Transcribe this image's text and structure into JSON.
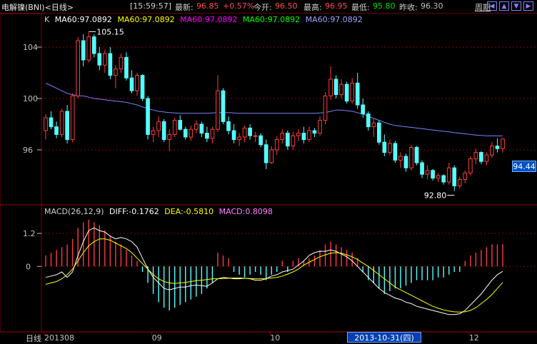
{
  "header": {
    "title": "电解镍(BNI)<日线>",
    "time": "[15:59:57]",
    "latest_label": "最新:",
    "latest_value": "96.85",
    "change_pct": "+0.57%",
    "open_label": "今开:",
    "open_value": "96.50",
    "high_label": "最高:",
    "high_value": "96.95",
    "low_label": "最低:",
    "low_value": "95.80",
    "prev_close_label": "昨收:",
    "prev_close_value": "96.30",
    "period_label": "周期",
    "nav_icons": [
      "left-arrow-icon",
      "zoom-in-icon",
      "zoom-out-icon",
      "right-arrow-icon"
    ]
  },
  "kline": {
    "legend_k": "K",
    "ma_items": [
      {
        "text": "MA60:97.0892",
        "color": "#ffffff"
      },
      {
        "text": "MA60:97.0892",
        "color": "#ffff00"
      },
      {
        "text": "MA60:97.0892",
        "color": "#ff00ff"
      },
      {
        "text": "MA60:97.0892",
        "color": "#00ff00"
      },
      {
        "text": "MA60:97.0892",
        "color": "#a0a0ff"
      }
    ],
    "high_mark": "105.15",
    "low_mark": "92.80",
    "current_price": "94.44",
    "y_ticks": [
      "104",
      "100",
      "96"
    ]
  },
  "macd": {
    "legend_name": "MACD(26,12,9)",
    "diff_text": "DIFF:-0.1762",
    "dea_text": "DEA:-0.5810",
    "macd_text": "MACD:0.8098",
    "y_ticks": [
      "1.2",
      "0"
    ]
  },
  "xaxis": {
    "period": "日线",
    "labels": [
      "201308",
      "09",
      "10",
      "12"
    ],
    "cursor_date": "2013-10-31(四)"
  },
  "colors": {
    "up": "#ff3c3c",
    "down": "#54ffff",
    "ma_line": "#8080ff",
    "diff_line": "#ffffff",
    "dea_line": "#ffff00",
    "grid": "#8b0000",
    "macd_up": "#ff3c3c",
    "macd_down": "#54ffff"
  },
  "chart_data": [
    {
      "type": "candlestick",
      "title": "",
      "ylim": [
        92,
        106
      ],
      "candles": [
        [
          97.5,
          98.8,
          96.8,
          98.5
        ],
        [
          98.5,
          99.0,
          97.6,
          97.8
        ],
        [
          97.8,
          98.2,
          96.9,
          97.2
        ],
        [
          97.2,
          99.2,
          97.0,
          99.0
        ],
        [
          99.0,
          99.5,
          96.5,
          96.8
        ],
        [
          96.8,
          100.4,
          96.6,
          100.2
        ],
        [
          100.2,
          104.8,
          100.0,
          104.5
        ],
        [
          104.5,
          105.0,
          102.5,
          103.0
        ],
        [
          103.0,
          105.15,
          102.8,
          104.8
        ],
        [
          104.8,
          105.0,
          103.2,
          103.5
        ],
        [
          103.5,
          104.0,
          102.2,
          102.6
        ],
        [
          102.6,
          103.8,
          102.0,
          103.5
        ],
        [
          103.5,
          104.0,
          101.5,
          101.8
        ],
        [
          101.8,
          102.6,
          100.8,
          102.3
        ],
        [
          102.3,
          103.5,
          102.0,
          103.2
        ],
        [
          103.2,
          103.6,
          101.4,
          101.6
        ],
        [
          101.6,
          102.2,
          100.4,
          100.6
        ],
        [
          100.6,
          102.0,
          100.2,
          101.8
        ],
        [
          101.8,
          101.9,
          99.8,
          100.0
        ],
        [
          100.0,
          100.2,
          96.8,
          97.2
        ],
        [
          97.2,
          97.8,
          96.6,
          97.5
        ],
        [
          97.5,
          98.6,
          97.0,
          98.2
        ],
        [
          98.2,
          98.4,
          96.6,
          96.8
        ],
        [
          96.8,
          97.6,
          95.9,
          97.2
        ],
        [
          97.2,
          98.5,
          97.0,
          98.3
        ],
        [
          98.3,
          98.7,
          97.5,
          97.6
        ],
        [
          97.6,
          97.8,
          96.8,
          97.0
        ],
        [
          97.0,
          97.9,
          96.7,
          97.6
        ],
        [
          97.6,
          98.3,
          97.3,
          98.0
        ],
        [
          98.0,
          98.2,
          97.0,
          97.3
        ],
        [
          97.3,
          97.8,
          96.6,
          96.9
        ],
        [
          96.9,
          97.8,
          96.5,
          97.6
        ],
        [
          97.6,
          101.8,
          97.4,
          100.6
        ],
        [
          100.6,
          100.8,
          98.0,
          98.2
        ],
        [
          98.2,
          98.6,
          97.2,
          97.5
        ],
        [
          97.5,
          98.0,
          96.5,
          96.8
        ],
        [
          96.8,
          97.3,
          96.3,
          97.0
        ],
        [
          97.0,
          97.9,
          96.6,
          97.7
        ],
        [
          97.7,
          98.0,
          96.8,
          97.1
        ],
        [
          97.1,
          97.4,
          96.6,
          97.1
        ],
        [
          97.1,
          97.3,
          96.2,
          96.4
        ],
        [
          96.4,
          96.8,
          94.5,
          95.0
        ],
        [
          95.0,
          96.3,
          94.9,
          96.0
        ],
        [
          96.0,
          97.1,
          95.6,
          96.8
        ],
        [
          96.8,
          97.6,
          96.5,
          97.3
        ],
        [
          97.3,
          97.5,
          96.0,
          96.3
        ],
        [
          96.3,
          97.4,
          96.0,
          97.1
        ],
        [
          97.1,
          97.6,
          96.7,
          97.3
        ],
        [
          97.3,
          97.8,
          96.5,
          96.8
        ],
        [
          96.8,
          97.8,
          96.6,
          97.5
        ],
        [
          97.5,
          97.7,
          97.0,
          97.3
        ],
        [
          97.3,
          98.6,
          97.1,
          98.3
        ],
        [
          98.3,
          100.5,
          98.0,
          100.2
        ],
        [
          100.2,
          102.5,
          99.9,
          101.5
        ],
        [
          101.5,
          101.8,
          100.0,
          100.3
        ],
        [
          100.3,
          101.5,
          100.0,
          101.1
        ],
        [
          101.1,
          101.3,
          99.6,
          99.8
        ],
        [
          99.8,
          101.6,
          99.6,
          101.2
        ],
        [
          101.2,
          102.0,
          99.2,
          99.5
        ],
        [
          99.5,
          100.0,
          98.5,
          98.8
        ],
        [
          98.8,
          99.0,
          97.5,
          97.8
        ],
        [
          97.8,
          98.4,
          97.0,
          98.1
        ],
        [
          98.1,
          98.3,
          96.4,
          96.6
        ],
        [
          96.6,
          97.2,
          95.5,
          95.8
        ],
        [
          95.8,
          96.8,
          95.6,
          96.5
        ],
        [
          96.5,
          96.7,
          95.0,
          95.2
        ],
        [
          95.2,
          95.8,
          94.6,
          95.5
        ],
        [
          95.5,
          95.7,
          94.3,
          94.6
        ],
        [
          94.6,
          96.4,
          94.4,
          96.2
        ],
        [
          96.2,
          96.3,
          94.8,
          95.0
        ],
        [
          95.0,
          95.2,
          93.8,
          94.1
        ],
        [
          94.1,
          94.8,
          93.7,
          94.4
        ],
        [
          94.4,
          94.5,
          93.6,
          93.8
        ],
        [
          93.8,
          94.2,
          93.5,
          94.0
        ],
        [
          94.0,
          94.1,
          93.3,
          93.5
        ],
        [
          93.5,
          95.0,
          93.3,
          94.6
        ],
        [
          94.6,
          94.8,
          92.8,
          93.2
        ],
        [
          93.2,
          93.9,
          93.0,
          93.7
        ],
        [
          93.7,
          94.4,
          93.4,
          94.2
        ],
        [
          94.2,
          95.5,
          94.0,
          95.3
        ],
        [
          95.3,
          96.1,
          94.9,
          95.8
        ],
        [
          95.8,
          95.9,
          94.9,
          95.1
        ],
        [
          95.1,
          95.8,
          94.8,
          95.6
        ],
        [
          95.6,
          96.6,
          95.4,
          96.3
        ],
        [
          96.3,
          96.9,
          95.8,
          96.1
        ],
        [
          96.1,
          96.9,
          95.8,
          96.85
        ]
      ],
      "ma": [
        101.2,
        101.0,
        100.8,
        100.6,
        100.4,
        100.3,
        100.2,
        100.2,
        100.1,
        100.0,
        99.95,
        99.9,
        99.85,
        99.8,
        99.75,
        99.7,
        99.6,
        99.5,
        99.35,
        99.2,
        99.1,
        99.0,
        98.95,
        98.9,
        98.88,
        98.85,
        98.85,
        98.85,
        98.85,
        98.85,
        98.85,
        98.88,
        98.9,
        98.9,
        98.9,
        98.88,
        98.85,
        98.85,
        98.85,
        98.85,
        98.85,
        98.85,
        98.85,
        98.85,
        98.85,
        98.85,
        98.85,
        98.85,
        98.85,
        98.85,
        98.85,
        98.88,
        98.9,
        99.0,
        99.1,
        99.1,
        99.05,
        99.0,
        98.9,
        98.8,
        98.6,
        98.45,
        98.3,
        98.15,
        98.0,
        97.9,
        97.85,
        97.8,
        97.75,
        97.7,
        97.65,
        97.6,
        97.55,
        97.5,
        97.45,
        97.4,
        97.35,
        97.3,
        97.25,
        97.2,
        97.15,
        97.12,
        97.1,
        97.1,
        97.09,
        97.0892
      ]
    },
    {
      "type": "macd",
      "title": "MACD(26,12,9)",
      "ylim": [
        -2.3,
        1.9
      ],
      "hist": [
        0.4,
        0.5,
        0.6,
        0.7,
        0.8,
        1.0,
        1.4,
        1.6,
        1.7,
        1.6,
        1.5,
        1.3,
        1.1,
        0.9,
        0.8,
        0.6,
        0.4,
        0.2,
        -0.2,
        -0.6,
        -1.0,
        -1.3,
        -1.5,
        -1.6,
        -1.5,
        -1.4,
        -1.3,
        -1.2,
        -1.1,
        -1.0,
        -0.8,
        -0.6,
        0.5,
        0.4,
        0.3,
        -0.2,
        -0.3,
        -0.4,
        -0.3,
        -0.2,
        -0.3,
        -0.5,
        -0.3,
        -0.2,
        0.2,
        -0.2,
        0.2,
        0.3,
        0.2,
        0.3,
        0.4,
        0.6,
        0.8,
        0.9,
        0.8,
        0.7,
        0.6,
        0.5,
        0.3,
        -0.2,
        -0.5,
        -0.6,
        -0.8,
        -1.0,
        -0.9,
        -0.8,
        -0.8,
        -0.7,
        -0.6,
        -0.5,
        -0.5,
        -0.5,
        -0.5,
        -0.4,
        -0.4,
        -0.3,
        -0.2,
        -0.2,
        0.2,
        0.4,
        0.5,
        0.6,
        0.7,
        0.8,
        0.8,
        0.81
      ],
      "diff": [
        -0.4,
        -0.35,
        -0.3,
        -0.2,
        -0.4,
        -0.2,
        0.4,
        0.9,
        1.3,
        1.4,
        1.3,
        1.25,
        1.1,
        1.0,
        1.05,
        1.0,
        0.9,
        0.7,
        0.3,
        -0.1,
        -0.4,
        -0.6,
        -0.8,
        -0.85,
        -0.8,
        -0.75,
        -0.75,
        -0.7,
        -0.68,
        -0.7,
        -0.72,
        -0.6,
        -0.45,
        -0.4,
        -0.42,
        -0.45,
        -0.45,
        -0.43,
        -0.45,
        -0.5,
        -0.5,
        -0.45,
        -0.35,
        -0.3,
        -0.2,
        -0.15,
        -0.1,
        0.05,
        0.2,
        0.4,
        0.5,
        0.55,
        0.55,
        0.6,
        0.55,
        0.45,
        0.35,
        0.2,
        0.0,
        -0.2,
        -0.4,
        -0.6,
        -0.8,
        -0.95,
        -1.05,
        -1.15,
        -1.2,
        -1.3,
        -1.35,
        -1.45,
        -1.5,
        -1.55,
        -1.6,
        -1.65,
        -1.7,
        -1.75,
        -1.75,
        -1.72,
        -1.6,
        -1.4,
        -1.2,
        -1.0,
        -0.75,
        -0.5,
        -0.3,
        -0.18
      ],
      "dea": [
        -0.65,
        -0.6,
        -0.55,
        -0.45,
        -0.3,
        -0.1,
        0.2,
        0.5,
        0.75,
        0.9,
        1.0,
        1.0,
        0.95,
        0.85,
        0.75,
        0.65,
        0.5,
        0.3,
        0.1,
        -0.1,
        -0.3,
        -0.45,
        -0.55,
        -0.6,
        -0.62,
        -0.6,
        -0.58,
        -0.55,
        -0.52,
        -0.5,
        -0.48,
        -0.45,
        -0.45,
        -0.44,
        -0.43,
        -0.42,
        -0.42,
        -0.43,
        -0.44,
        -0.45,
        -0.45,
        -0.44,
        -0.42,
        -0.4,
        -0.35,
        -0.28,
        -0.2,
        -0.1,
        0.05,
        0.15,
        0.25,
        0.35,
        0.42,
        0.48,
        0.5,
        0.48,
        0.42,
        0.35,
        0.25,
        0.12,
        0.0,
        -0.15,
        -0.3,
        -0.45,
        -0.6,
        -0.75,
        -0.85,
        -0.95,
        -1.05,
        -1.15,
        -1.25,
        -1.35,
        -1.45,
        -1.52,
        -1.58,
        -1.62,
        -1.65,
        -1.66,
        -1.65,
        -1.6,
        -1.5,
        -1.35,
        -1.2,
        -1.02,
        -0.8,
        -0.58
      ]
    }
  ]
}
